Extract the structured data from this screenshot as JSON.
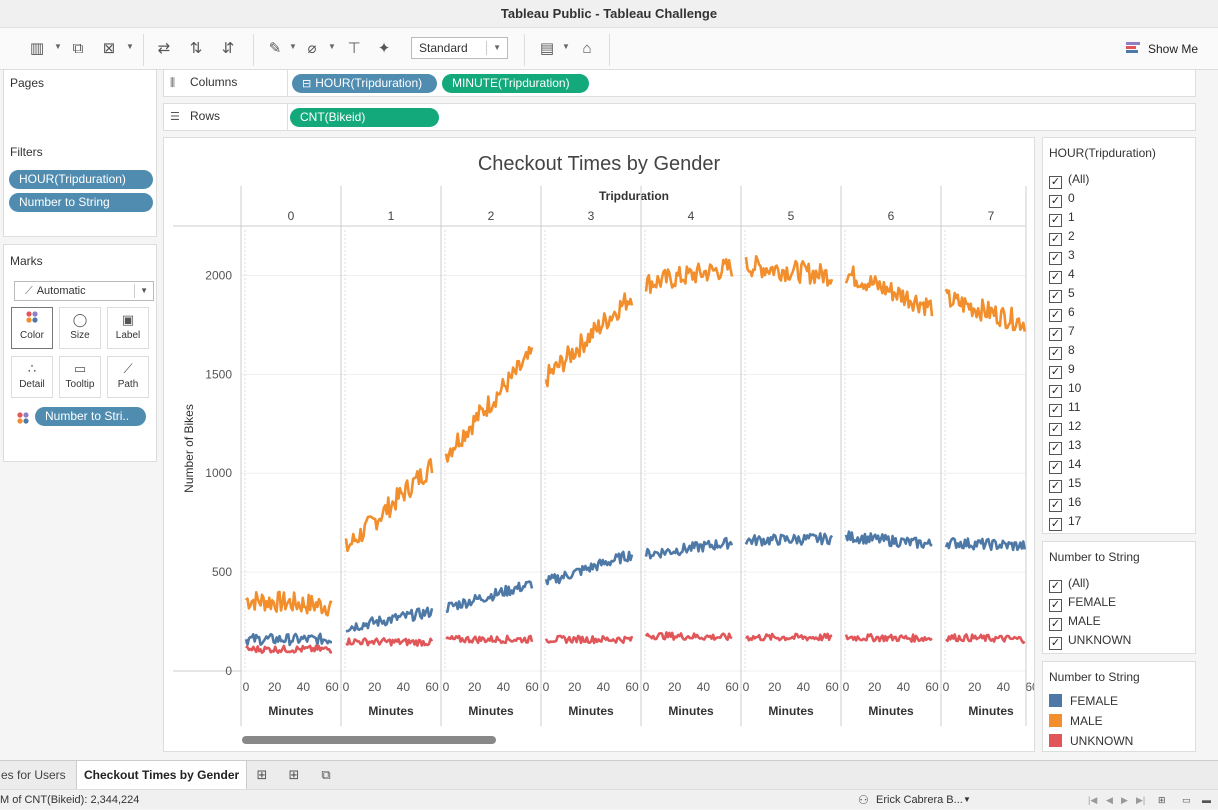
{
  "window": {
    "title": "Tableau Public - Tableau Challenge"
  },
  "toolbar": {
    "fit": "Standard",
    "show_me": "Show Me",
    "show_me_colors": [
      "#8f7fc5",
      "#e15759",
      "#4e79a7"
    ],
    "icons": [
      "new-worksheet-icon",
      "duplicate-sheet-icon",
      "clear-sheet-icon",
      "swap-icon",
      "sort-ascending-icon",
      "sort-descending-icon",
      "highlight-icon",
      "group-icon",
      "labels-icon",
      "pin-icon",
      "show-cards-icon",
      "presentation-icon"
    ]
  },
  "pages": {
    "title": "Pages"
  },
  "filters": {
    "title": "Filters",
    "pills": [
      "HOUR(Tripduration)",
      "Number to String"
    ]
  },
  "marks": {
    "title": "Marks",
    "type": "Automatic",
    "cards": [
      "Color",
      "Size",
      "Label",
      "Detail",
      "Tooltip",
      "Path"
    ],
    "color_pill": "Number to Stri.."
  },
  "shelves": {
    "columns_label": "Columns",
    "rows_label": "Rows",
    "columns": [
      "HOUR(Tripduration)",
      "MINUTE(Tripduration)"
    ],
    "rows": [
      "CNT(Bikeid)"
    ]
  },
  "hour_filter": {
    "title": "HOUR(Tripduration)",
    "items": [
      "(All)",
      "0",
      "1",
      "2",
      "3",
      "4",
      "5",
      "6",
      "7",
      "8",
      "9",
      "10",
      "11",
      "12",
      "13",
      "14",
      "15",
      "16",
      "17"
    ]
  },
  "gender_filter": {
    "title": "Number to String",
    "items": [
      "(All)",
      "FEMALE",
      "MALE",
      "UNKNOWN"
    ]
  },
  "legend": {
    "title": "Number to String",
    "items": [
      {
        "label": "FEMALE",
        "color": "#4e79a7"
      },
      {
        "label": "MALE",
        "color": "#f28e2b"
      },
      {
        "label": "UNKNOWN",
        "color": "#e15759"
      }
    ]
  },
  "chart_data": {
    "type": "line",
    "title": "Checkout Times by Gender",
    "column_header": "Tripduration",
    "ylabel": "Number of Bikes",
    "xlabel": "Minutes",
    "ylim": [
      0,
      2250
    ],
    "yticks": [
      0,
      500,
      1000,
      1500,
      2000
    ],
    "xlim": [
      0,
      60
    ],
    "xticks": [
      "0",
      "20",
      "40",
      "60"
    ],
    "panes": [
      "0",
      "1",
      "2",
      "3",
      "4",
      "5",
      "6",
      "7"
    ],
    "series": [
      {
        "name": "MALE",
        "color": "#f28e2b",
        "pane_ranges": [
          [
            360,
            330
          ],
          [
            620,
            1040
          ],
          [
            1100,
            1600
          ],
          [
            1480,
            1900
          ],
          [
            1960,
            2040
          ],
          [
            2050,
            2000
          ],
          [
            2010,
            1840
          ],
          [
            1880,
            1750
          ]
        ]
      },
      {
        "name": "FEMALE",
        "color": "#4e79a7",
        "pane_ranges": [
          [
            160,
            160
          ],
          [
            220,
            300
          ],
          [
            320,
            440
          ],
          [
            450,
            590
          ],
          [
            590,
            650
          ],
          [
            660,
            670
          ],
          [
            680,
            640
          ],
          [
            650,
            630
          ]
        ]
      },
      {
        "name": "UNKNOWN",
        "color": "#e15759",
        "pane_ranges": [
          [
            110,
            110
          ],
          [
            150,
            145
          ],
          [
            160,
            160
          ],
          [
            160,
            160
          ],
          [
            180,
            170
          ],
          [
            170,
            170
          ],
          [
            170,
            165
          ],
          [
            170,
            160
          ]
        ]
      }
    ]
  },
  "sheet_tabs": {
    "tabs": [
      "es for Users",
      "Checkout Times by Gender"
    ],
    "icons": [
      "new-worksheet-tab-icon",
      "new-dashboard-icon",
      "new-story-icon"
    ]
  },
  "status": {
    "summary": "M of CNT(Bikeid): 2,344,224",
    "user": "Erick Cabrera B..."
  }
}
